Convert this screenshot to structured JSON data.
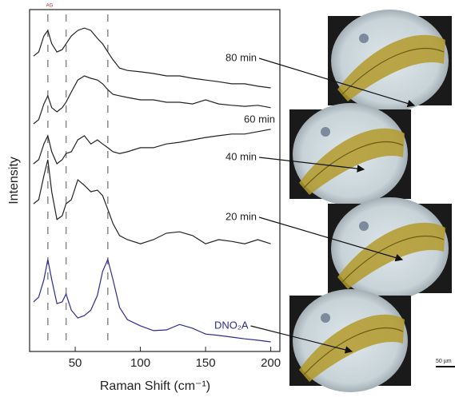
{
  "chart_data": {
    "type": "line",
    "x_label": "Raman Shift (cm⁻¹)",
    "y_label": "Intensity",
    "peak_label": "AG",
    "scale_bar": "50 µm",
    "xlim": [
      15,
      207
    ],
    "xticks": [
      50,
      100,
      150,
      200
    ],
    "ylim": [
      0,
      100
    ],
    "reference_lines": [
      29,
      43,
      75
    ],
    "x": [
      18,
      22,
      26,
      29,
      32,
      36,
      40,
      43,
      47,
      52,
      57,
      62,
      67,
      71,
      75,
      79,
      84,
      90,
      100,
      110,
      120,
      130,
      140,
      150,
      160,
      170,
      180,
      190,
      200
    ],
    "series": [
      {
        "name": "80 min",
        "color": "#222222",
        "values": [
          86.4,
          87.6,
          92.3,
          93.9,
          90.0,
          87.6,
          88.3,
          90.0,
          92.3,
          93.9,
          94.6,
          93.9,
          91.6,
          90.0,
          87.6,
          85.3,
          82.9,
          82.2,
          81.8,
          81.3,
          80.6,
          80.6,
          79.9,
          79.4,
          78.9,
          78.3,
          78.3,
          77.6,
          77.1
        ]
      },
      {
        "name": "60 min",
        "color": "#222222",
        "values": [
          66.6,
          67.8,
          72.4,
          74.8,
          71.3,
          70.1,
          71.3,
          72.9,
          75.9,
          79.4,
          80.6,
          79.9,
          79.4,
          78.3,
          76.6,
          75.2,
          74.8,
          74.3,
          73.6,
          73.6,
          72.9,
          72.9,
          72.4,
          73.6,
          72.4,
          72.0,
          71.7,
          72.0,
          71.3
        ]
      },
      {
        "name": "40 min",
        "color": "#222222",
        "values": [
          54.9,
          56.1,
          60.7,
          63.1,
          58.4,
          54.9,
          56.1,
          57.9,
          58.4,
          61.9,
          63.1,
          60.7,
          61.9,
          60.7,
          59.6,
          58.4,
          57.9,
          58.4,
          59.6,
          59.6,
          60.7,
          61.2,
          61.9,
          62.6,
          63.1,
          63.6,
          63.6,
          64.3,
          65.0
        ]
      },
      {
        "name": "20 min",
        "color": "#222222",
        "values": [
          43.2,
          44.4,
          51.4,
          56.1,
          46.7,
          38.6,
          39.7,
          43.2,
          44.4,
          50.2,
          48.6,
          46.7,
          47.2,
          45.6,
          41.6,
          37.4,
          33.9,
          32.7,
          31.5,
          32.7,
          34.6,
          35.0,
          33.9,
          31.5,
          32.7,
          32.2,
          31.5,
          32.7,
          31.5
        ]
      },
      {
        "name": "DNO₂A",
        "color": "#2b2b8c",
        "values": [
          14.5,
          15.9,
          21.0,
          26.9,
          21.0,
          14.0,
          14.5,
          16.8,
          12.1,
          9.8,
          10.5,
          12.1,
          16.4,
          23.4,
          26.9,
          21.0,
          12.9,
          9.3,
          7.5,
          6.1,
          6.3,
          7.9,
          6.8,
          5.1,
          4.7,
          4.2,
          3.7,
          3.3,
          2.8
        ]
      }
    ]
  }
}
